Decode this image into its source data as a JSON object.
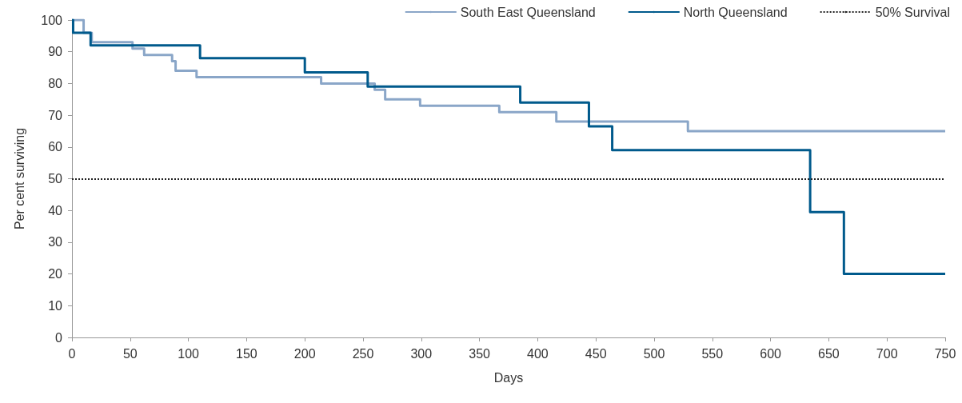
{
  "chart_data": {
    "type": "step",
    "xlabel": "Days",
    "ylabel": "Per cent surviving",
    "series": [
      {
        "name": "South East Queensland",
        "color": "#8aa6c8",
        "x": [
          0,
          10,
          17,
          52,
          62,
          86,
          89,
          107,
          214,
          260,
          269,
          299,
          367,
          416,
          529,
          750
        ],
        "values": [
          100,
          96,
          93,
          91,
          89,
          87,
          84,
          82,
          80,
          78,
          75,
          73,
          71,
          68,
          65,
          65
        ]
      },
      {
        "name": "North Queensland",
        "color": "#005a8c",
        "x": [
          0,
          1,
          16,
          110,
          200,
          254,
          385,
          444,
          464,
          634,
          663,
          750
        ],
        "values": [
          100,
          96,
          92,
          88,
          83.5,
          79,
          74,
          66.5,
          59,
          39.5,
          20,
          20
        ]
      }
    ],
    "ref_lines": [
      {
        "axis": "y",
        "value": 50,
        "label": "50% Survival",
        "color": "#222222",
        "line_style": "dotted"
      }
    ],
    "xlim": [
      0,
      750
    ],
    "xticks": [
      0,
      50,
      100,
      150,
      200,
      250,
      300,
      350,
      400,
      450,
      500,
      550,
      600,
      650,
      700,
      750
    ],
    "ylim": [
      0,
      100
    ],
    "yticks": [
      0,
      10,
      20,
      30,
      40,
      50,
      60,
      70,
      80,
      90,
      100
    ],
    "legend": "top right",
    "marker": "none",
    "line_style": "solid",
    "grid": false
  }
}
